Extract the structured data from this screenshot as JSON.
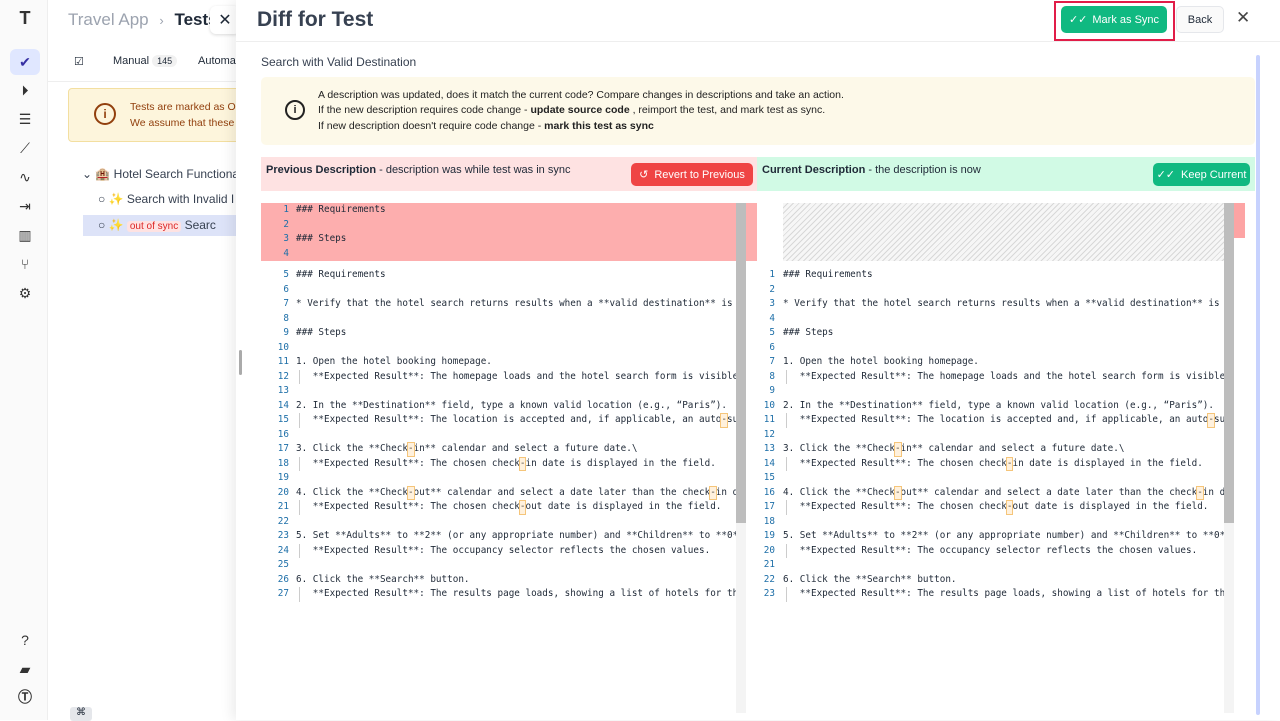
{
  "sidebar": {
    "icons": [
      "logo-icon",
      "check-icon",
      "play-icon",
      "list-check-icon",
      "steps-icon",
      "pulse-icon",
      "import-icon",
      "chart-icon",
      "branch-icon",
      "gear-icon",
      "help-icon",
      "folder-icon",
      "profile-icon"
    ],
    "bottom_shortcut": "⌘"
  },
  "background": {
    "breadcrumb_project": "Travel App",
    "breadcrumb_sep": "›",
    "breadcrumb_page": "Tests",
    "tabs": [
      {
        "label": "Manual",
        "count": "145"
      },
      {
        "label": "Automa"
      }
    ],
    "warning_line1": "Tests are marked as O",
    "warning_line2": "We assume that these",
    "tree": [
      {
        "label": "Hotel Search Functiona"
      },
      {
        "label": "Search with Invalid I"
      },
      {
        "status": "out of sync",
        "label": "Searc"
      }
    ]
  },
  "drawer": {
    "title": "Diff for Test",
    "mark_sync": "Mark as Sync",
    "back": "Back",
    "test_name": "Search with Valid Destination",
    "info": {
      "line1": "A description was updated, does it match the current code? Compare changes in descriptions and take an action.",
      "line2_a": "If the new description requires code change - ",
      "line2_b": "update source code",
      "line2_c": " , reimport the test, and mark test as sync.",
      "line3_a": "If new description doesn't require code change - ",
      "line3_b": "mark this test as sync"
    },
    "previous": {
      "title": "Previous Description",
      "desc": " - description was while test was in sync",
      "button": "Revert to Previous"
    },
    "current": {
      "title": "Current Description",
      "desc": " - the description is now",
      "button": "Keep Current"
    }
  },
  "diff": {
    "removed_lines": [
      "### Requirements",
      "",
      "### Steps",
      ""
    ],
    "lines": [
      "### Requirements",
      "",
      "* Verify that the hotel search returns results when a **valid destination** is e",
      "",
      "### Steps",
      "",
      "1. Open the hotel booking homepage.",
      "   **Expected Result**: The homepage loads and the hotel search form is visible.",
      "",
      "2. In the **Destination** field, type a known valid location (e.g., “Paris”).",
      "   **Expected Result**: The location is accepted and, if applicable, an auto-sug",
      "",
      "3. Click the **Check-in** calendar and select a future date.\\",
      "   **Expected Result**: The chosen check-in date is displayed in the field.",
      "",
      "4. Click the **Check-out** calendar and select a date later than the check-in da",
      "   **Expected Result**: The chosen check-out date is displayed in the field.",
      "",
      "5. Set **Adults** to **2** (or any appropriate number) and **Children** to **0**",
      "   **Expected Result**: The occupancy selector reflects the chosen values.",
      "",
      "6. Click the **Search** button.",
      "   **Expected Result**: The results page loads, showing a list of hotels for the"
    ]
  },
  "colors": {
    "accent_green": "#10b981",
    "danger_red": "#ef4444",
    "removed_bg": "#fdaeae",
    "warning_bg": "#fdf9e9"
  }
}
